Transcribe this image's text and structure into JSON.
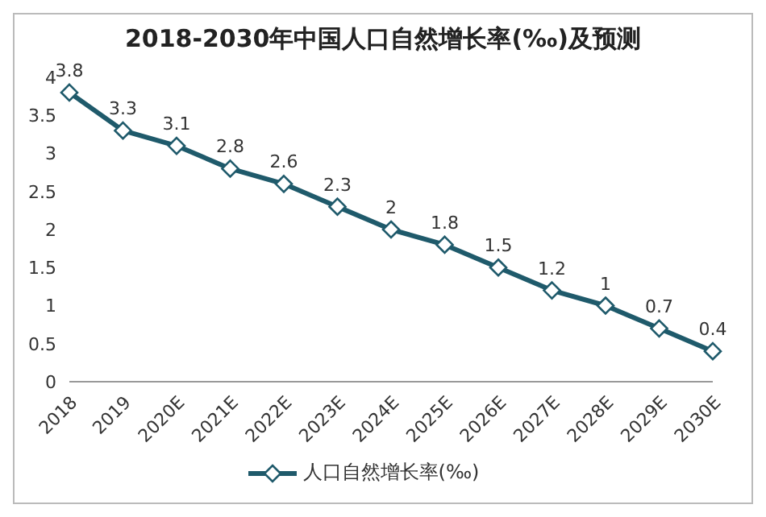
{
  "chart_data": {
    "type": "line",
    "title": "2018-2030年中国人口自然增长率(‰)及预测",
    "categories": [
      "2018",
      "2019",
      "2020E",
      "2021E",
      "2022E",
      "2023E",
      "2024E",
      "2025E",
      "2026E",
      "2027E",
      "2028E",
      "2029E",
      "2030E"
    ],
    "series": [
      {
        "name": "人口自然增长率(‰)",
        "color": "#1f5a6b",
        "values": [
          3.8,
          3.3,
          3.1,
          2.8,
          2.6,
          2.3,
          2,
          1.8,
          1.5,
          1.2,
          1,
          0.7,
          0.4
        ]
      }
    ],
    "ylim": [
      0,
      4
    ],
    "yticks": [
      0,
      0.5,
      1,
      1.5,
      2,
      2.5,
      3,
      3.5,
      4
    ],
    "grid": false,
    "legend": "bottom",
    "marker": "diamond",
    "line_style": "solid",
    "data_labels": true
  }
}
